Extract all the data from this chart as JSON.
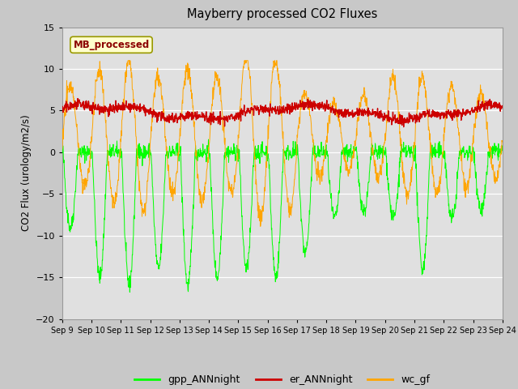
{
  "title": "Mayberry processed CO2 Fluxes",
  "ylabel": "CO2 Flux (urology/m2/s)",
  "ylim": [
    -20,
    15
  ],
  "yticks": [
    -20,
    -15,
    -10,
    -5,
    0,
    5,
    10,
    15
  ],
  "legend_label": "MB_processed",
  "legend_label_color": "#8B0000",
  "legend_bg": "#ffffcc",
  "series": {
    "gpp": {
      "color": "#00ff00",
      "label": "gpp_ANNnight"
    },
    "er": {
      "color": "#cc0000",
      "label": "er_ANNnight"
    },
    "wc": {
      "color": "#ffa500",
      "label": "wc_gf"
    }
  },
  "xstart": 9,
  "xend": 24,
  "n_points": 1440
}
